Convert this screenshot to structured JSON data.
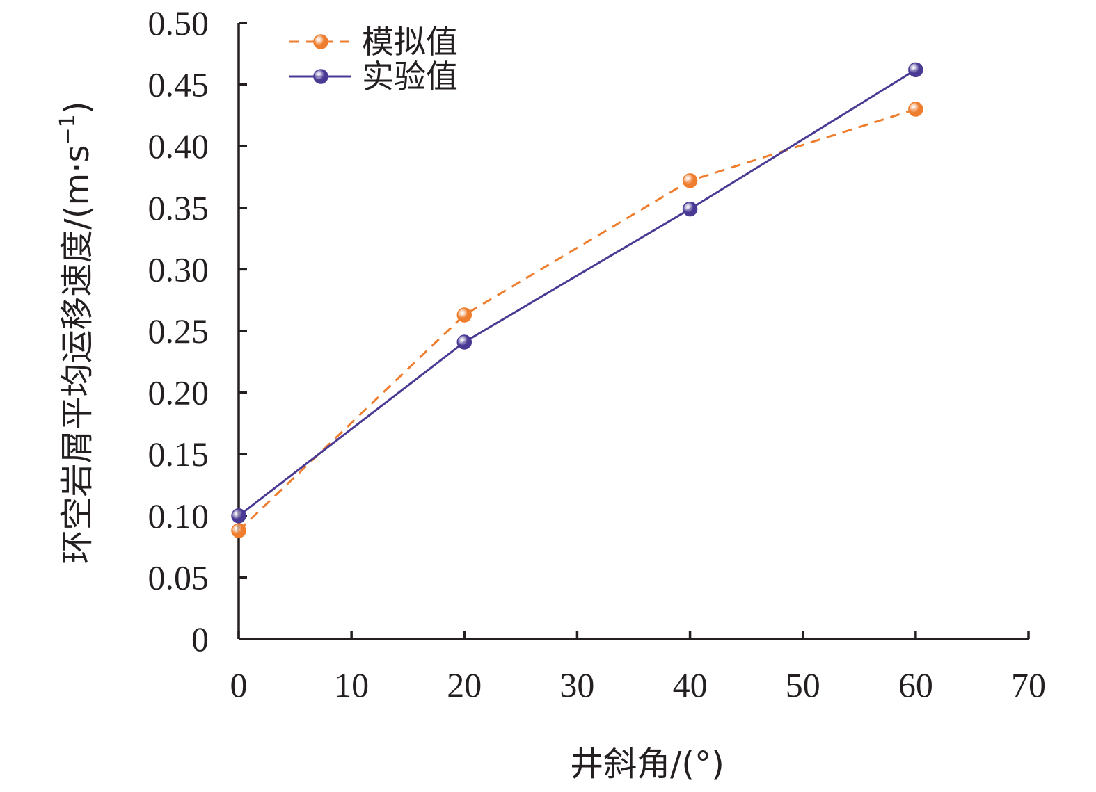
{
  "chart_data": {
    "type": "line",
    "xlabel": "井斜角/(°)",
    "ylabel": {
      "main": "环空岩屑平均运移速度/(m·s",
      "sup": "−1",
      "close": ")"
    },
    "xlim": [
      0,
      70
    ],
    "ylim": [
      0,
      0.5
    ],
    "x_ticks": [
      "0",
      "10",
      "20",
      "30",
      "40",
      "50",
      "60",
      "70"
    ],
    "y_ticks": [
      "0",
      "0.05",
      "0.10",
      "0.15",
      "0.20",
      "0.25",
      "0.30",
      "0.35",
      "0.40",
      "0.45",
      "0.50"
    ],
    "x": [
      0,
      20,
      40,
      60
    ],
    "legend_position": "top-left",
    "series": [
      {
        "name": "模拟值",
        "values": [
          0.088,
          0.263,
          0.372,
          0.43
        ],
        "color": "#ee7d2e",
        "line_style": "dashed"
      },
      {
        "name": "实验值",
        "values": [
          0.1,
          0.241,
          0.349,
          0.462
        ],
        "color": "#4a3a94",
        "line_style": "solid"
      }
    ]
  }
}
